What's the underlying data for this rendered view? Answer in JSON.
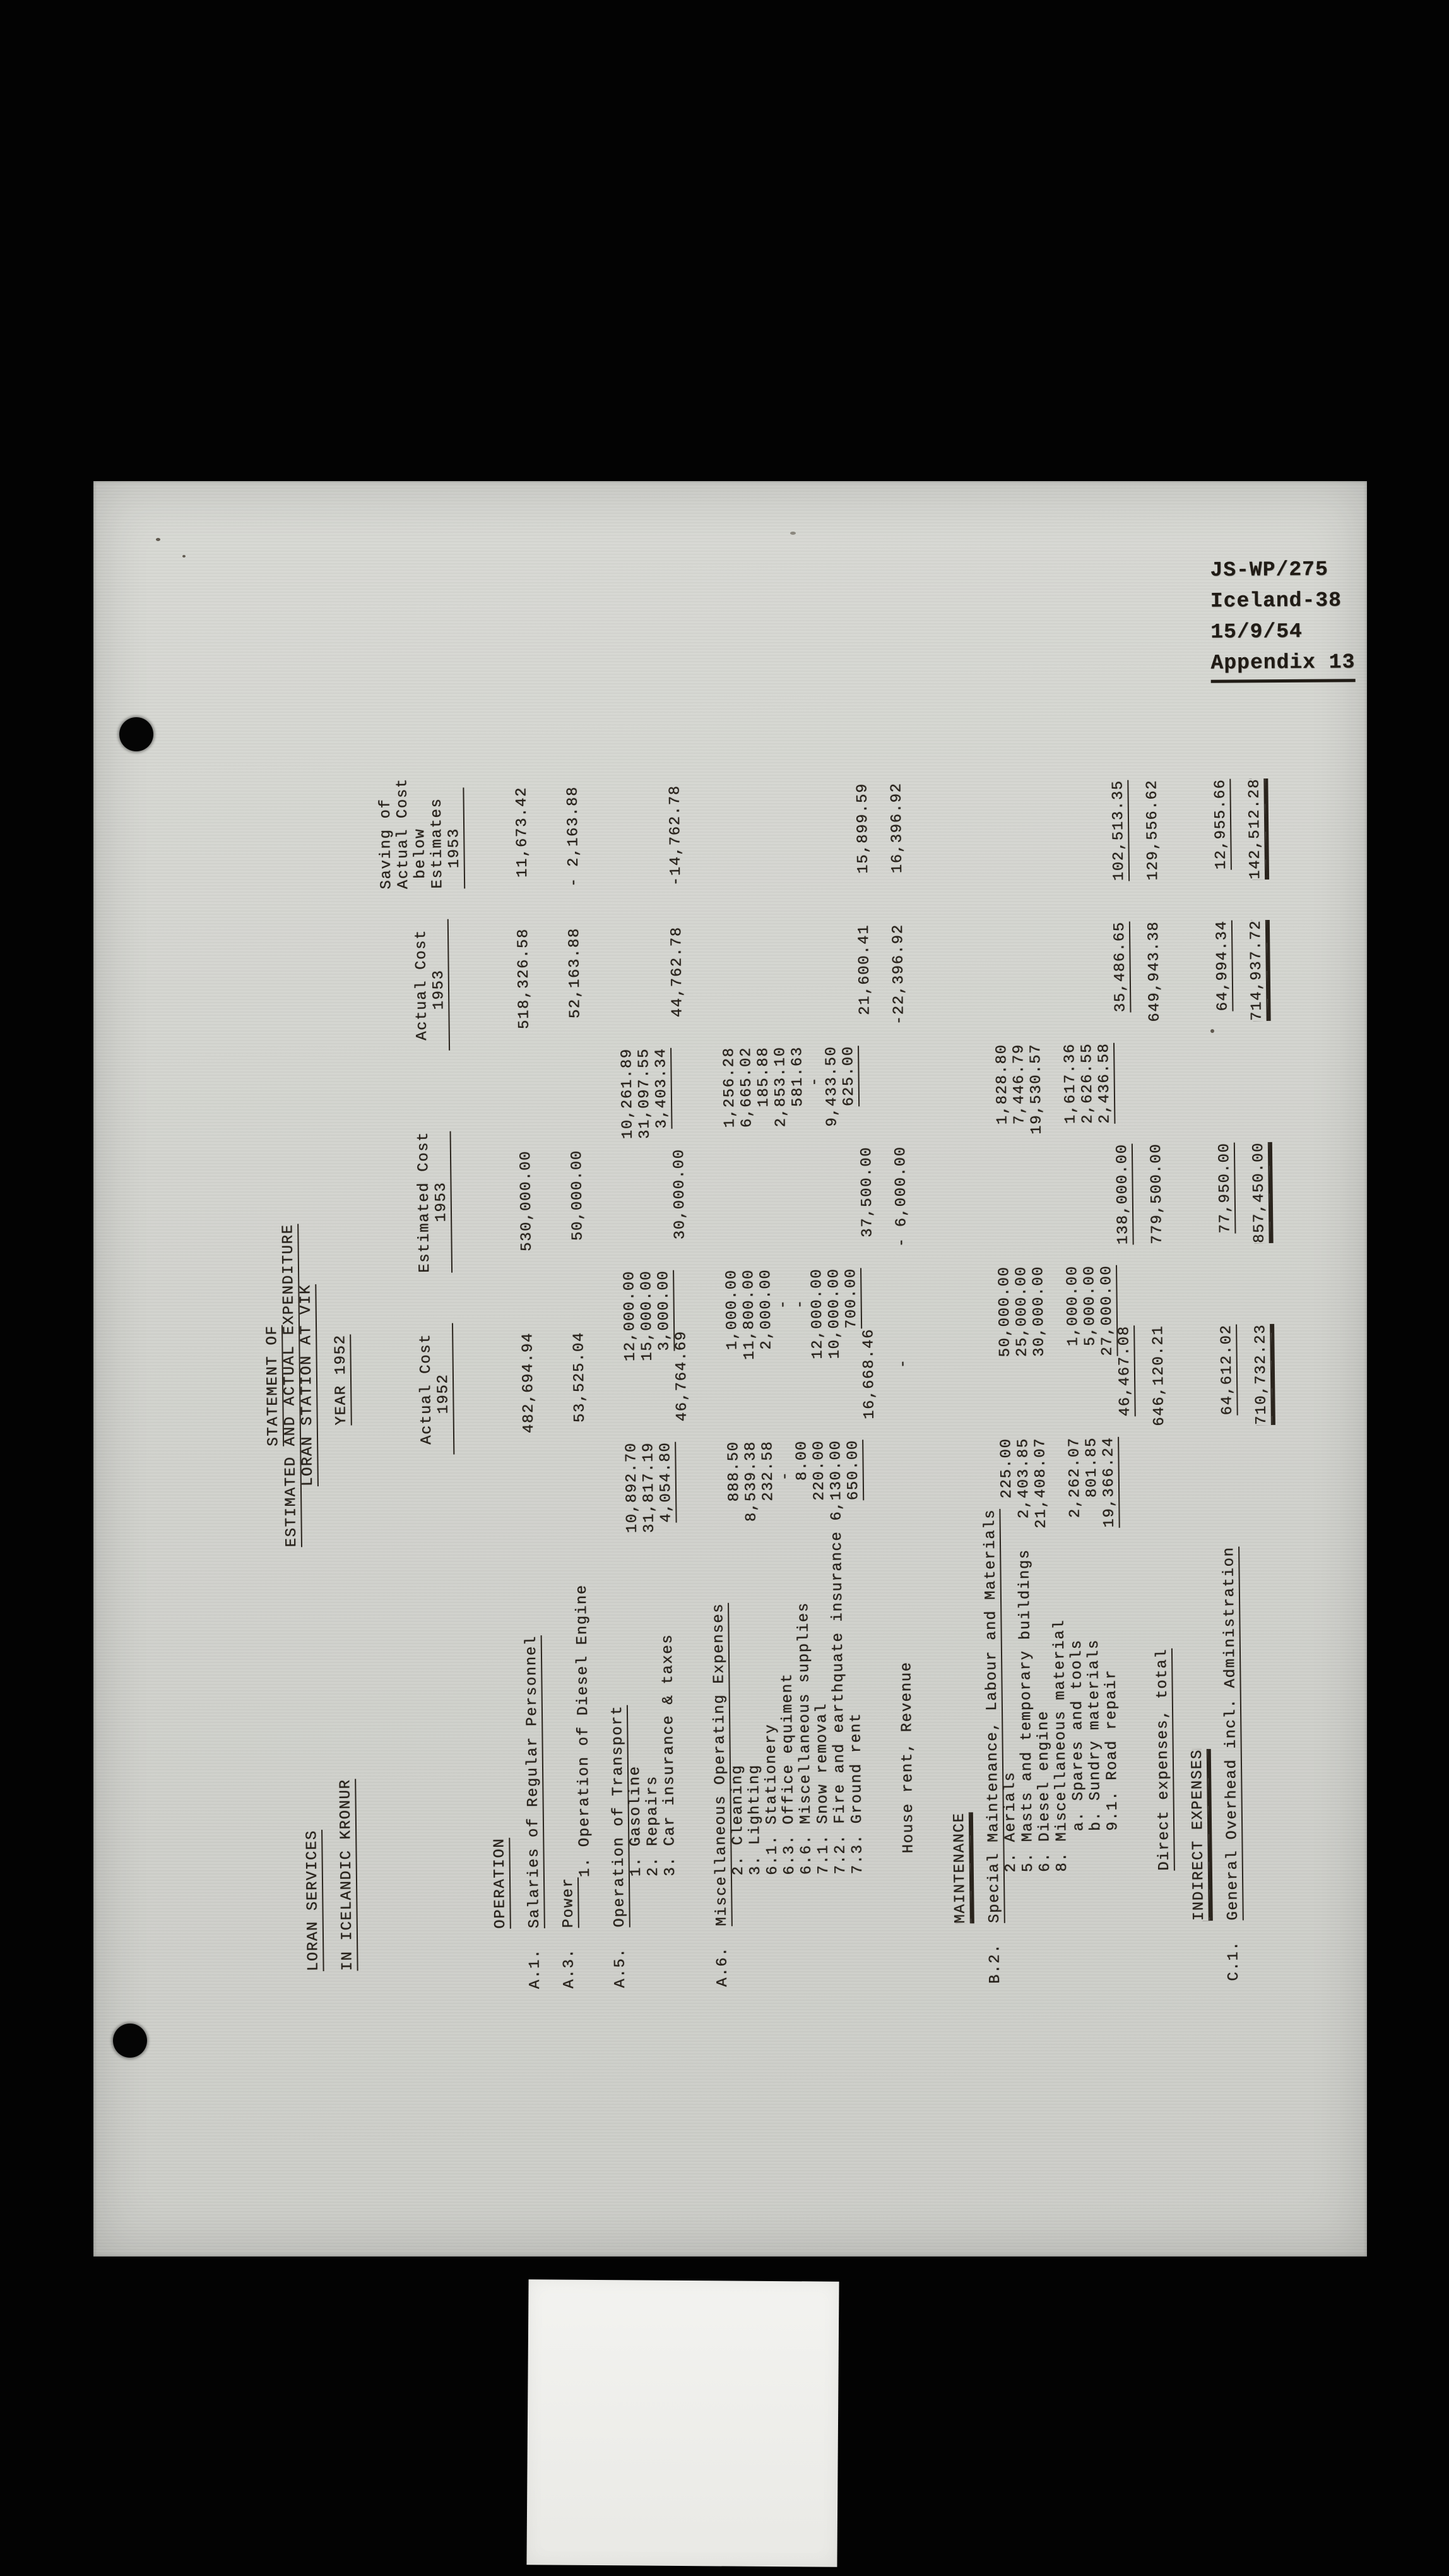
{
  "canvas": {
    "background": "#030303",
    "paper_color": "#d2d3ce",
    "ink_color": "#262019",
    "card_color": "#f3f3f0"
  },
  "stamp": {
    "line1": "JS-WP/275",
    "line2": "Iceland-38",
    "line3": "15/9/54",
    "line4": "Appendix 13"
  },
  "doc": {
    "corner": {
      "line1": "LORAN SERVICES",
      "line2": "IN ICELANDIC KRONUR"
    },
    "titles": {
      "t1": "STATEMENT OF",
      "t2": "ESTIMATED AND ACTUAL EXPENDITURE",
      "t3": "LORAN STATION AT VIK",
      "t4": "YEAR 1952"
    },
    "col_headers": {
      "col1": {
        "line1": "Actual Cost",
        "line2": "1952"
      },
      "col2": {
        "line1": "Estimated Cost",
        "line2": "1953"
      },
      "col3": {
        "line1": "Actual Cost",
        "line2": "1953"
      },
      "col4": {
        "line1": "Saving of",
        "line2": "Actual Cost",
        "line3": "below",
        "line4": "Estimates",
        "line5": "1953"
      }
    },
    "rows": [
      {
        "k": "sec",
        "label": "OPERATION",
        "u": 1
      },
      {
        "k": "blank"
      },
      {
        "k": "row",
        "code": "A.1.",
        "label": "Salaries of Regular Personnel",
        "lu": 1,
        "m": [
          "482,694.94",
          "530,000.00",
          "518,326.58",
          "11,673.42"
        ]
      },
      {
        "k": "blank"
      },
      {
        "k": "row",
        "code": "A.3.",
        "label": "Power",
        "lu": 1
      },
      {
        "k": "row",
        "ind": 1,
        "label": "1. Operation of Diesel Engine",
        "m": [
          "53,525.04",
          "50,000.00",
          "52,163.88",
          "- 2,163.88"
        ]
      },
      {
        "k": "blank"
      },
      {
        "k": "row",
        "code": "A.5.",
        "label": "Operation of Transport",
        "lu": 1
      },
      {
        "k": "row",
        "ind": 1,
        "label": "1. Gasoline",
        "s": [
          "10,892.70",
          "12,000.00",
          "10,261.89"
        ]
      },
      {
        "k": "row",
        "ind": 1,
        "label": "2. Repairs",
        "s": [
          "31,817.19",
          "15,000.00",
          "31,097.55"
        ]
      },
      {
        "k": "row",
        "ind": 1,
        "label": "3. Car insurance & taxes",
        "s": [
          "4,054.80",
          "3,000.00",
          "3,403.34"
        ],
        "su": 1
      },
      {
        "k": "tot",
        "m": [
          "46,764.69",
          "30,000.00",
          "44,762.78",
          "-14,762.78"
        ]
      },
      {
        "k": "blank"
      },
      {
        "k": "row",
        "code": "A.6.",
        "label": "Miscellaneous Operating Expenses",
        "lu": 1
      },
      {
        "k": "row",
        "ind": 1,
        "label": "2. Cleaning",
        "s": [
          "888.50",
          "1,000.00",
          "1,256.28"
        ]
      },
      {
        "k": "row",
        "ind": 1,
        "label": "3. Lighting",
        "s": [
          "8,539.38",
          "11,800.00",
          "6,665.02"
        ]
      },
      {
        "k": "row",
        "ind": 1,
        "label": "6.1. Stationery",
        "s": [
          "232.58",
          "2,000.00",
          "185.88"
        ]
      },
      {
        "k": "row",
        "ind": 1,
        "label": "6.3. Office equiment",
        "s": [
          "-",
          "-",
          "2,853.10"
        ]
      },
      {
        "k": "row",
        "ind": 1,
        "label": "6.6. Miscellaneous supplies",
        "s": [
          "8.00",
          "-",
          "581.63"
        ]
      },
      {
        "k": "row",
        "ind": 1,
        "label": "7.1. Snow removal",
        "s": [
          "220.00",
          "12,000.00",
          "-"
        ]
      },
      {
        "k": "row",
        "ind": 1,
        "label": "7.2. Fire and earthquate insurance",
        "s": [
          "6,130.00",
          "10,000.00",
          "9,433.50"
        ]
      },
      {
        "k": "row",
        "ind": 1,
        "label": "7.3. Ground rent",
        "s": [
          "650.00",
          "700.00",
          "625.00"
        ],
        "su": 1
      },
      {
        "k": "tot",
        "m": [
          "16,668.46",
          "37,500.00",
          "21,600.41",
          "15,899.59"
        ]
      },
      {
        "k": "blank"
      },
      {
        "k": "row",
        "col": 13,
        "label": "House rent, Revenue",
        "m": [
          "-",
          "- 6,000.00",
          "-22,396.92",
          "16,396.92"
        ]
      },
      {
        "k": "blank"
      },
      {
        "k": "blank"
      },
      {
        "k": "sec",
        "label": "MAINTENANCE",
        "u": 2
      },
      {
        "k": "blank"
      },
      {
        "k": "row",
        "code": "B.2.",
        "label": "Special Maintenance, Labour and Materials",
        "lu": 1
      },
      {
        "k": "row",
        "ind": 1,
        "label": "2. Aerials",
        "s": [
          "225.00",
          "50,000.00",
          "1,828.80"
        ]
      },
      {
        "k": "row",
        "ind": 1,
        "label": "5. Masts and temporary buildings",
        "s": [
          "2,403.85",
          "25,000.00",
          "7,446.79"
        ]
      },
      {
        "k": "row",
        "ind": 1,
        "label": "6. Diesel engine",
        "s": [
          "21,408.07",
          "30,000.00",
          "19,530.57"
        ]
      },
      {
        "k": "row",
        "ind": 1,
        "label": "8. Miscellaneous material"
      },
      {
        "k": "row",
        "ind": 2,
        "label": "a. Spares and tools",
        "s": [
          "2,262.07",
          "1,000.00",
          "1,617.36"
        ]
      },
      {
        "k": "row",
        "ind": 2,
        "label": "b. Sundry materials",
        "s": [
          "801.85",
          "5,000.00",
          "2,626.55"
        ]
      },
      {
        "k": "row",
        "ind": 2,
        "label": "9.1. Road repair",
        "s": [
          "19,366.24",
          "27,000.00",
          "2,436.58"
        ],
        "su": 1
      },
      {
        "k": "tot",
        "m": [
          "46,467.08",
          "138,000.00",
          "35,486.65",
          "102,513.35"
        ],
        "mu": 1
      },
      {
        "k": "blank"
      },
      {
        "k": "row",
        "col": 11,
        "label": "Direct expenses, total",
        "lu": 1,
        "m": [
          "646,120.21",
          "779,500.00",
          "649,943.38",
          "129,556.62"
        ]
      },
      {
        "k": "blank"
      },
      {
        "k": "sec",
        "label": "INDIRECT EXPENSES",
        "u": 2
      },
      {
        "k": "blank"
      },
      {
        "k": "row",
        "code": "C.1.",
        "label": "General Overhead incl. Administration",
        "lu": 1,
        "m": [
          "64,612.02",
          "77,950.00",
          "64,994.34",
          "12,955.66"
        ],
        "mu": 1
      },
      {
        "k": "blank"
      },
      {
        "k": "tot",
        "m": [
          "710,732.23",
          "857,450.00",
          "714,937.72",
          "142,512.28"
        ],
        "mu": 2
      }
    ]
  }
}
